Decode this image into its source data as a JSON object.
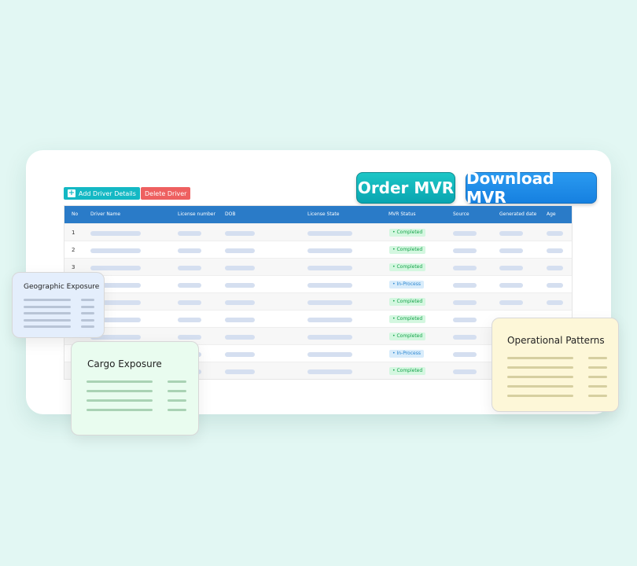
{
  "toolbar": {
    "add_label": "Add Driver Details",
    "delete_label": "Delete Driver",
    "order_label": "Order MVR",
    "download_label": "Download MVR"
  },
  "table": {
    "headers": [
      "No",
      "Driver Name",
      "License number",
      "DOB",
      "License State",
      "MVR Status",
      "Source",
      "Generated date",
      "Age"
    ],
    "rows": [
      {
        "no": "1",
        "status": "Completed"
      },
      {
        "no": "2",
        "status": "Completed"
      },
      {
        "no": "3",
        "status": "Completed"
      },
      {
        "no": "",
        "status": "In-Process"
      },
      {
        "no": "",
        "status": "Completed"
      },
      {
        "no": "",
        "status": "Completed"
      },
      {
        "no": "",
        "status": "Completed"
      },
      {
        "no": "",
        "status": "In-Process"
      },
      {
        "no": "",
        "status": "Completed"
      }
    ]
  },
  "cards": {
    "geographic": "Geographic Exposure",
    "cargo": "Cargo Exposure",
    "operational": "Operational Patterns"
  },
  "colors": {
    "header": "#2a7bc8",
    "completed": "#16a34a",
    "in_process": "#2b86d0"
  }
}
